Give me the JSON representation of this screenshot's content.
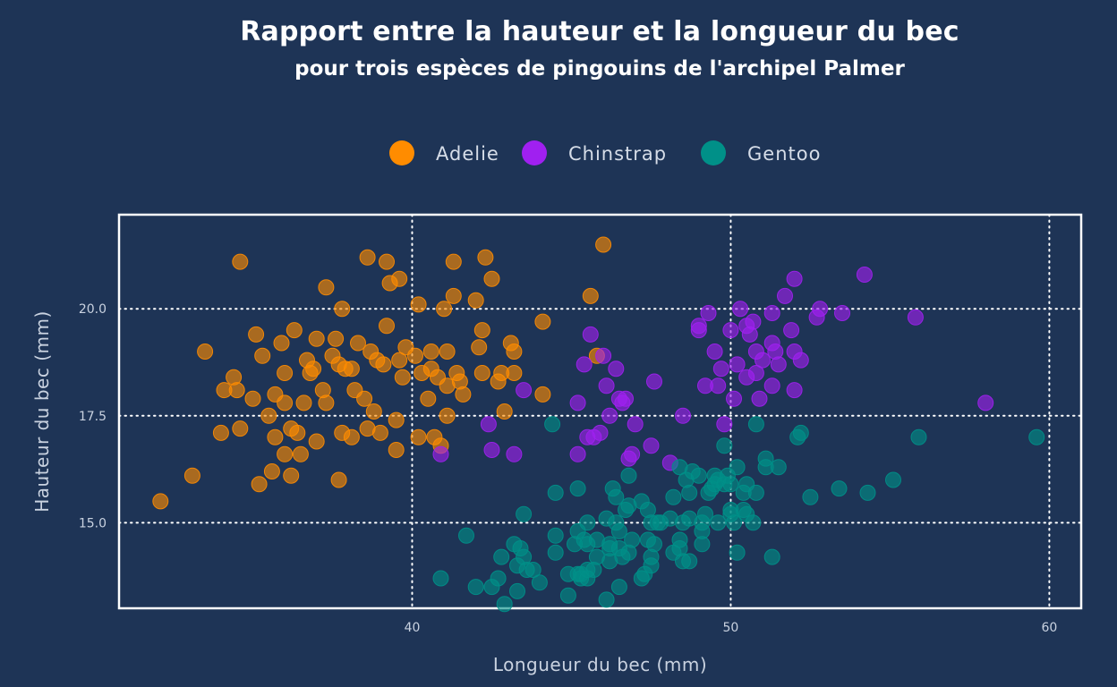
{
  "chart_data": {
    "type": "scatter",
    "title": "Rapport entre la hauteur et la longueur du bec",
    "subtitle": "pour trois espèces de pingouins de l'archipel Palmer",
    "xlabel": "Longueur du bec (mm)",
    "ylabel": "Hauteur du bec (mm)",
    "xlim": [
      30.8,
      61.0
    ],
    "ylim": [
      13.0,
      22.2
    ],
    "xticks": [
      40,
      50,
      60
    ],
    "xtick_labels": [
      "40",
      "50",
      "60"
    ],
    "yticks": [
      15.0,
      17.5,
      20.0
    ],
    "ytick_labels": [
      "15.0",
      "17.5",
      "20.0"
    ],
    "grid": true,
    "legend_position": "top",
    "series": [
      {
        "name": "Adelie",
        "color": "#ff8c00",
        "points": [
          [
            32.1,
            15.5
          ],
          [
            33.1,
            16.1
          ],
          [
            33.5,
            19.0
          ],
          [
            34.0,
            17.1
          ],
          [
            34.1,
            18.1
          ],
          [
            34.4,
            18.4
          ],
          [
            34.5,
            18.1
          ],
          [
            34.6,
            21.1
          ],
          [
            34.6,
            17.2
          ],
          [
            35.0,
            17.9
          ],
          [
            35.1,
            19.4
          ],
          [
            35.2,
            15.9
          ],
          [
            35.3,
            18.9
          ],
          [
            35.5,
            17.5
          ],
          [
            35.6,
            16.2
          ],
          [
            35.7,
            17.0
          ],
          [
            35.7,
            18.0
          ],
          [
            35.9,
            19.2
          ],
          [
            36.0,
            16.6
          ],
          [
            36.0,
            17.8
          ],
          [
            36.0,
            18.5
          ],
          [
            36.2,
            16.1
          ],
          [
            36.2,
            17.2
          ],
          [
            36.3,
            19.5
          ],
          [
            36.4,
            17.1
          ],
          [
            36.5,
            16.6
          ],
          [
            36.6,
            17.8
          ],
          [
            36.7,
            18.8
          ],
          [
            36.8,
            18.5
          ],
          [
            36.9,
            18.6
          ],
          [
            37.0,
            16.9
          ],
          [
            37.0,
            19.3
          ],
          [
            37.2,
            18.1
          ],
          [
            37.3,
            20.5
          ],
          [
            37.3,
            17.8
          ],
          [
            37.5,
            18.9
          ],
          [
            37.6,
            19.3
          ],
          [
            37.7,
            18.7
          ],
          [
            37.7,
            16.0
          ],
          [
            37.8,
            17.1
          ],
          [
            37.8,
            20.0
          ],
          [
            37.9,
            18.6
          ],
          [
            38.1,
            18.6
          ],
          [
            38.1,
            17.0
          ],
          [
            38.2,
            18.1
          ],
          [
            38.3,
            19.2
          ],
          [
            38.5,
            17.9
          ],
          [
            38.6,
            21.2
          ],
          [
            38.6,
            17.2
          ],
          [
            38.7,
            19.0
          ],
          [
            38.8,
            17.6
          ],
          [
            38.9,
            18.8
          ],
          [
            39.0,
            17.1
          ],
          [
            39.1,
            18.7
          ],
          [
            39.2,
            19.6
          ],
          [
            39.2,
            21.1
          ],
          [
            39.3,
            20.6
          ],
          [
            39.5,
            16.7
          ],
          [
            39.5,
            17.4
          ],
          [
            39.6,
            18.8
          ],
          [
            39.6,
            20.7
          ],
          [
            39.7,
            18.4
          ],
          [
            39.8,
            19.1
          ],
          [
            40.1,
            18.9
          ],
          [
            40.2,
            17.0
          ],
          [
            40.2,
            20.1
          ],
          [
            40.3,
            18.5
          ],
          [
            40.5,
            17.9
          ],
          [
            40.6,
            18.6
          ],
          [
            40.6,
            19.0
          ],
          [
            40.7,
            17.0
          ],
          [
            40.8,
            18.4
          ],
          [
            40.9,
            16.8
          ],
          [
            41.0,
            20.0
          ],
          [
            41.1,
            17.5
          ],
          [
            41.1,
            18.2
          ],
          [
            41.1,
            19.0
          ],
          [
            41.3,
            20.3
          ],
          [
            41.3,
            21.1
          ],
          [
            41.4,
            18.5
          ],
          [
            41.5,
            18.3
          ],
          [
            41.6,
            18.0
          ],
          [
            42.0,
            20.2
          ],
          [
            42.1,
            19.1
          ],
          [
            42.2,
            18.5
          ],
          [
            42.2,
            19.5
          ],
          [
            42.3,
            21.2
          ],
          [
            42.5,
            20.7
          ],
          [
            42.7,
            18.3
          ],
          [
            42.8,
            18.5
          ],
          [
            42.9,
            17.6
          ],
          [
            43.1,
            19.2
          ],
          [
            43.2,
            19.0
          ],
          [
            43.2,
            18.5
          ],
          [
            44.1,
            18.0
          ],
          [
            44.1,
            19.7
          ],
          [
            45.6,
            20.3
          ],
          [
            45.8,
            18.9
          ],
          [
            46.0,
            21.5
          ]
        ]
      },
      {
        "name": "Chinstrap",
        "color": "#a020f0",
        "points": [
          [
            40.9,
            16.6
          ],
          [
            42.4,
            17.3
          ],
          [
            42.5,
            16.7
          ],
          [
            43.2,
            16.6
          ],
          [
            43.5,
            18.1
          ],
          [
            45.2,
            16.6
          ],
          [
            45.2,
            17.8
          ],
          [
            45.4,
            18.7
          ],
          [
            45.5,
            17.0
          ],
          [
            45.6,
            19.4
          ],
          [
            45.7,
            17.0
          ],
          [
            45.9,
            17.1
          ],
          [
            46.0,
            18.9
          ],
          [
            46.1,
            18.2
          ],
          [
            46.2,
            17.5
          ],
          [
            46.4,
            18.6
          ],
          [
            46.5,
            17.9
          ],
          [
            46.6,
            17.8
          ],
          [
            46.7,
            17.9
          ],
          [
            46.8,
            16.5
          ],
          [
            46.9,
            16.6
          ],
          [
            47.0,
            17.3
          ],
          [
            47.5,
            16.8
          ],
          [
            47.6,
            18.3
          ],
          [
            48.1,
            16.4
          ],
          [
            48.5,
            17.5
          ],
          [
            49.0,
            19.5
          ],
          [
            49.0,
            19.6
          ],
          [
            49.2,
            18.2
          ],
          [
            49.3,
            19.9
          ],
          [
            49.5,
            19.0
          ],
          [
            49.6,
            18.2
          ],
          [
            49.7,
            18.6
          ],
          [
            49.8,
            17.3
          ],
          [
            50.0,
            19.5
          ],
          [
            50.1,
            17.9
          ],
          [
            50.2,
            18.7
          ],
          [
            50.3,
            20.0
          ],
          [
            50.5,
            18.4
          ],
          [
            50.5,
            19.6
          ],
          [
            50.6,
            19.4
          ],
          [
            50.7,
            19.7
          ],
          [
            50.8,
            18.5
          ],
          [
            50.8,
            19.0
          ],
          [
            50.9,
            17.9
          ],
          [
            51.0,
            18.8
          ],
          [
            51.3,
            18.2
          ],
          [
            51.3,
            19.2
          ],
          [
            51.3,
            19.9
          ],
          [
            51.4,
            19.0
          ],
          [
            51.5,
            18.7
          ],
          [
            51.7,
            20.3
          ],
          [
            51.9,
            19.5
          ],
          [
            52.0,
            18.1
          ],
          [
            52.0,
            19.0
          ],
          [
            52.0,
            20.7
          ],
          [
            52.2,
            18.8
          ],
          [
            52.7,
            19.8
          ],
          [
            52.8,
            20.0
          ],
          [
            53.5,
            19.9
          ],
          [
            54.2,
            20.8
          ],
          [
            55.8,
            19.8
          ],
          [
            58.0,
            17.8
          ]
        ]
      },
      {
        "name": "Gentoo",
        "color": "#009088",
        "points": [
          [
            40.9,
            13.7
          ],
          [
            41.7,
            14.7
          ],
          [
            42.0,
            13.5
          ],
          [
            42.5,
            13.5
          ],
          [
            42.7,
            13.7
          ],
          [
            42.8,
            14.2
          ],
          [
            42.9,
            13.1
          ],
          [
            43.2,
            14.5
          ],
          [
            43.3,
            13.4
          ],
          [
            43.3,
            14.0
          ],
          [
            43.4,
            14.4
          ],
          [
            43.5,
            14.2
          ],
          [
            43.5,
            15.2
          ],
          [
            43.6,
            13.9
          ],
          [
            43.8,
            13.9
          ],
          [
            44.0,
            13.6
          ],
          [
            44.4,
            17.3
          ],
          [
            44.5,
            14.3
          ],
          [
            44.5,
            14.7
          ],
          [
            44.5,
            15.7
          ],
          [
            44.9,
            13.3
          ],
          [
            44.9,
            13.8
          ],
          [
            45.1,
            14.5
          ],
          [
            45.2,
            13.8
          ],
          [
            45.2,
            14.8
          ],
          [
            45.2,
            15.8
          ],
          [
            45.3,
            13.7
          ],
          [
            45.3,
            13.8
          ],
          [
            45.4,
            14.6
          ],
          [
            45.5,
            13.7
          ],
          [
            45.5,
            13.9
          ],
          [
            45.5,
            14.5
          ],
          [
            45.5,
            15.0
          ],
          [
            45.7,
            13.9
          ],
          [
            45.8,
            14.2
          ],
          [
            45.8,
            14.6
          ],
          [
            46.1,
            13.2
          ],
          [
            46.1,
            15.1
          ],
          [
            46.2,
            14.1
          ],
          [
            46.2,
            14.4
          ],
          [
            46.2,
            14.5
          ],
          [
            46.3,
            15.8
          ],
          [
            46.4,
            15.0
          ],
          [
            46.4,
            15.6
          ],
          [
            46.5,
            13.5
          ],
          [
            46.5,
            14.4
          ],
          [
            46.5,
            14.8
          ],
          [
            46.6,
            14.2
          ],
          [
            46.7,
            15.3
          ],
          [
            46.8,
            14.3
          ],
          [
            46.8,
            15.4
          ],
          [
            46.8,
            16.1
          ],
          [
            46.9,
            14.6
          ],
          [
            47.2,
            13.7
          ],
          [
            47.2,
            15.5
          ],
          [
            47.3,
            13.8
          ],
          [
            47.4,
            14.6
          ],
          [
            47.4,
            15.3
          ],
          [
            47.5,
            14.0
          ],
          [
            47.5,
            14.2
          ],
          [
            47.5,
            15.0
          ],
          [
            47.6,
            14.5
          ],
          [
            47.7,
            15.0
          ],
          [
            47.8,
            15.0
          ],
          [
            48.1,
            15.1
          ],
          [
            48.2,
            14.3
          ],
          [
            48.2,
            15.6
          ],
          [
            48.4,
            14.4
          ],
          [
            48.4,
            14.6
          ],
          [
            48.4,
            16.3
          ],
          [
            48.5,
            14.1
          ],
          [
            48.5,
            15.0
          ],
          [
            48.6,
            16.0
          ],
          [
            48.7,
            14.1
          ],
          [
            48.7,
            15.1
          ],
          [
            48.7,
            15.7
          ],
          [
            48.8,
            16.2
          ],
          [
            49.0,
            16.1
          ],
          [
            49.1,
            14.5
          ],
          [
            49.1,
            14.8
          ],
          [
            49.1,
            15.0
          ],
          [
            49.2,
            15.2
          ],
          [
            49.3,
            15.7
          ],
          [
            49.4,
            15.8
          ],
          [
            49.5,
            15.9
          ],
          [
            49.5,
            16.1
          ],
          [
            49.6,
            15.0
          ],
          [
            49.6,
            16.0
          ],
          [
            49.8,
            15.9
          ],
          [
            49.8,
            16.8
          ],
          [
            49.9,
            16.1
          ],
          [
            50.0,
            15.2
          ],
          [
            50.0,
            15.3
          ],
          [
            50.0,
            15.9
          ],
          [
            50.1,
            15.0
          ],
          [
            50.2,
            14.3
          ],
          [
            50.2,
            16.3
          ],
          [
            50.4,
            15.3
          ],
          [
            50.4,
            15.7
          ],
          [
            50.5,
            15.2
          ],
          [
            50.5,
            15.9
          ],
          [
            50.7,
            15.0
          ],
          [
            50.8,
            15.7
          ],
          [
            50.8,
            17.3
          ],
          [
            51.1,
            16.3
          ],
          [
            51.1,
            16.5
          ],
          [
            51.3,
            14.2
          ],
          [
            51.5,
            16.3
          ],
          [
            52.1,
            17.0
          ],
          [
            52.2,
            17.1
          ],
          [
            52.5,
            15.6
          ],
          [
            53.4,
            15.8
          ],
          [
            54.3,
            15.7
          ],
          [
            55.1,
            16.0
          ],
          [
            55.9,
            17.0
          ],
          [
            59.6,
            17.0
          ]
        ]
      }
    ]
  }
}
